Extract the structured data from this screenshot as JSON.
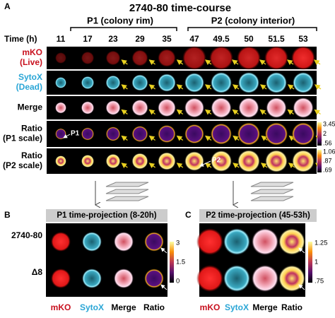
{
  "panel_a": {
    "label": "A",
    "title": "2740-80 time-course",
    "groups": [
      "P1 (colony rim)",
      "P2 (colony interior)"
    ],
    "time_label": "Time (h)",
    "times": [
      "11",
      "17",
      "23",
      "29",
      "35",
      "47",
      "49.5",
      "50",
      "51.5",
      "53"
    ],
    "rows": [
      {
        "lines": [
          "mKO",
          "(Live)"
        ]
      },
      {
        "lines": [
          "SytoX",
          "(Dead)"
        ]
      },
      {
        "lines": [
          "Merge"
        ]
      },
      {
        "lines": [
          "Ratio",
          "(P1 scale)"
        ]
      },
      {
        "lines": [
          "Ratio",
          "(P2 scale)"
        ]
      }
    ],
    "annotations": [
      "P1",
      "P2"
    ],
    "colorbars": [
      [
        "3.45",
        "2",
        ".56"
      ],
      [
        "1.06",
        ".87",
        ".69"
      ]
    ]
  },
  "panel_b": {
    "label": "B",
    "header": "P1 time-projection (8-20h)",
    "rows": [
      "2740-80",
      "Δ8"
    ],
    "columns": [
      "mKO",
      "SytoX",
      "Merge",
      "Ratio"
    ],
    "colorbar": [
      "3",
      "1.5",
      "0"
    ]
  },
  "panel_c": {
    "label": "C",
    "header": "P2 time-projection (45-53h)",
    "columns": [
      "mKO",
      "SytoX",
      "Merge",
      "Ratio"
    ],
    "colorbar": [
      "1.25",
      "1",
      ".75"
    ]
  }
}
